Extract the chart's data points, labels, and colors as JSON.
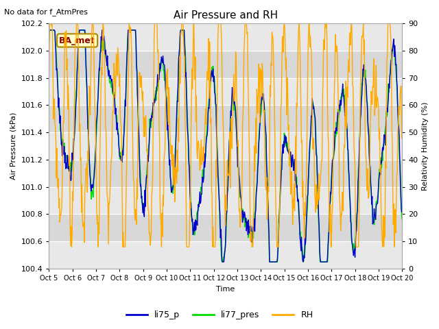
{
  "title": "Air Pressure and RH",
  "subtitle": "No data for f_AtmPres",
  "xlabel": "Time",
  "ylabel_left": "Air Pressure (kPa)",
  "ylabel_right": "Relativity Humidity (%)",
  "annotation": "BA_met",
  "ylim_left": [
    100.4,
    102.2
  ],
  "ylim_right": [
    0,
    90
  ],
  "yticks_left": [
    100.4,
    100.6,
    100.8,
    101.0,
    101.2,
    101.4,
    101.6,
    101.8,
    102.0,
    102.2
  ],
  "yticks_right": [
    0,
    10,
    20,
    30,
    40,
    50,
    60,
    70,
    80,
    90
  ],
  "xtick_labels": [
    "Oct 5",
    "Oct 6",
    "Oct 7",
    "Oct 8",
    "Oct 9",
    "Oct 10",
    "Oct 11",
    "Oct 12",
    "Oct 13",
    "Oct 14",
    "Oct 15",
    "Oct 16",
    "Oct 17",
    "Oct 18",
    "Oct 19",
    "Oct 20"
  ],
  "color_li75": "#0000cc",
  "color_li77": "#00dd00",
  "color_rh": "#ffaa00",
  "plot_bg_light": "#e8e8e8",
  "plot_bg_dark": "#d0d0d0",
  "legend_labels": [
    "li75_p",
    "li77_pres",
    "RH"
  ],
  "line_width": 1.0
}
